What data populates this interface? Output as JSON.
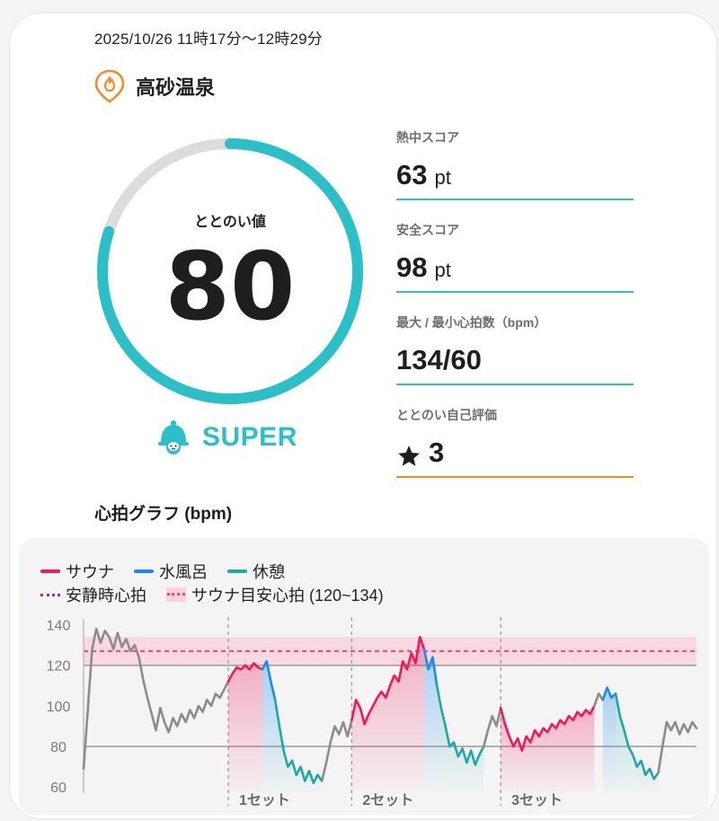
{
  "session": {
    "datetime": "2025/10/26 11時17分〜12時29分",
    "place": "高砂温泉"
  },
  "score": {
    "label": "ととのい値",
    "value": "80",
    "ratio": 0.8,
    "rank": "SUPER",
    "ring_color": "#2bbfc8",
    "track_color": "#dcdcdc"
  },
  "stats": [
    {
      "label": "熱中スコア",
      "value": "63",
      "unit": "pt"
    },
    {
      "label": "安全スコア",
      "value": "98",
      "unit": "pt"
    },
    {
      "label": "最大 / 最小心拍数（bpm）",
      "value": "134/60",
      "unit": ""
    },
    {
      "label": "ととのい自己評価",
      "value": "3",
      "unit": "",
      "icon": "star-icon"
    }
  ],
  "graph": {
    "title": "心拍グラフ (bpm)",
    "legend": {
      "sauna": "サウナ",
      "cold": "水風呂",
      "rest": "休憩",
      "resting_hr": "安静時心拍",
      "target": "サウナ目安心拍 (120~134)"
    },
    "colors": {
      "sauna": "#f0175a",
      "cold": "#1a8cf0",
      "rest": "#21a6a8",
      "other": "#8c8c8c",
      "resting_hr": "#8a2be2",
      "target": "#f0476d"
    },
    "sets": [
      "1セット",
      "2セット",
      "3セット"
    ]
  },
  "chart_data": {
    "type": "line",
    "title": "",
    "ylabel": "",
    "ylim": [
      57,
      142
    ],
    "yticks": [
      140,
      120,
      100,
      80,
      60
    ],
    "reference_lines": [
      120,
      80
    ],
    "target_band": [
      120,
      134
    ],
    "target_line": 127,
    "series": [
      {
        "segment": "other",
        "points": [
          [
            0,
            69
          ],
          [
            1,
            98
          ],
          [
            2,
            128
          ],
          [
            3,
            138
          ],
          [
            4,
            131
          ],
          [
            5,
            137
          ],
          [
            6,
            134
          ],
          [
            7,
            128
          ],
          [
            8,
            136
          ],
          [
            9,
            129
          ],
          [
            10,
            133
          ],
          [
            11,
            127
          ],
          [
            12,
            130
          ],
          [
            13,
            124
          ],
          [
            14,
            113
          ],
          [
            15,
            104
          ],
          [
            16,
            96
          ],
          [
            17,
            88
          ],
          [
            18,
            99
          ],
          [
            19,
            92
          ],
          [
            20,
            87
          ],
          [
            21,
            94
          ],
          [
            22,
            90
          ],
          [
            23,
            96
          ],
          [
            24,
            92
          ],
          [
            25,
            98
          ],
          [
            26,
            94
          ],
          [
            27,
            100
          ],
          [
            28,
            97
          ],
          [
            29,
            103
          ],
          [
            30,
            100
          ],
          [
            31,
            106
          ],
          [
            32,
            104
          ],
          [
            33,
            108
          ],
          [
            34,
            112
          ]
        ]
      },
      {
        "segment": "sauna",
        "points": [
          [
            34,
            112
          ],
          [
            35,
            116
          ],
          [
            36,
            119
          ],
          [
            37,
            118
          ],
          [
            38,
            120
          ],
          [
            39,
            118
          ],
          [
            40,
            121
          ],
          [
            41,
            119
          ],
          [
            42,
            118
          ]
        ]
      },
      {
        "segment": "cold",
        "points": [
          [
            42,
            118
          ],
          [
            43,
            122
          ],
          [
            44,
            112
          ],
          [
            45,
            103
          ]
        ]
      },
      {
        "segment": "rest",
        "points": [
          [
            45,
            103
          ],
          [
            46,
            90
          ],
          [
            47,
            78
          ],
          [
            48,
            70
          ],
          [
            49,
            73
          ],
          [
            50,
            66
          ],
          [
            51,
            70
          ],
          [
            52,
            63
          ],
          [
            53,
            68
          ],
          [
            54,
            62
          ],
          [
            55,
            66
          ],
          [
            56,
            63
          ]
        ]
      },
      {
        "segment": "other",
        "points": [
          [
            56,
            63
          ],
          [
            57,
            72
          ],
          [
            58,
            82
          ],
          [
            59,
            90
          ],
          [
            60,
            86
          ],
          [
            61,
            92
          ],
          [
            62,
            85
          ],
          [
            63,
            93
          ]
        ]
      },
      {
        "segment": "sauna",
        "points": [
          [
            63,
            93
          ],
          [
            64,
            103
          ],
          [
            65,
            99
          ],
          [
            66,
            91
          ],
          [
            67,
            96
          ],
          [
            68,
            100
          ],
          [
            69,
            104
          ],
          [
            70,
            107
          ],
          [
            71,
            104
          ],
          [
            72,
            110
          ],
          [
            73,
            115
          ],
          [
            74,
            112
          ],
          [
            75,
            122
          ],
          [
            76,
            118
          ],
          [
            77,
            126
          ],
          [
            78,
            121
          ],
          [
            79,
            134
          ],
          [
            80,
            128
          ]
        ]
      },
      {
        "segment": "cold",
        "points": [
          [
            80,
            128
          ],
          [
            81,
            118
          ],
          [
            82,
            124
          ],
          [
            83,
            110
          ]
        ]
      },
      {
        "segment": "rest",
        "points": [
          [
            83,
            110
          ],
          [
            84,
            99
          ],
          [
            85,
            90
          ],
          [
            86,
            80
          ],
          [
            87,
            82
          ],
          [
            88,
            75
          ],
          [
            89,
            79
          ],
          [
            90,
            72
          ],
          [
            91,
            78
          ],
          [
            92,
            71
          ],
          [
            93,
            76
          ],
          [
            94,
            80
          ]
        ]
      },
      {
        "segment": "other",
        "points": [
          [
            94,
            80
          ],
          [
            95,
            88
          ],
          [
            96,
            95
          ],
          [
            97,
            90
          ],
          [
            98,
            99
          ]
        ]
      },
      {
        "segment": "sauna",
        "points": [
          [
            98,
            99
          ],
          [
            99,
            91
          ],
          [
            100,
            85
          ],
          [
            101,
            80
          ],
          [
            102,
            84
          ],
          [
            103,
            78
          ],
          [
            104,
            85
          ],
          [
            105,
            82
          ],
          [
            106,
            88
          ],
          [
            107,
            85
          ],
          [
            108,
            89
          ],
          [
            109,
            87
          ],
          [
            110,
            91
          ],
          [
            111,
            89
          ],
          [
            112,
            93
          ],
          [
            113,
            91
          ],
          [
            114,
            95
          ],
          [
            115,
            93
          ],
          [
            116,
            97
          ],
          [
            117,
            95
          ],
          [
            118,
            98
          ],
          [
            119,
            96
          ],
          [
            120,
            100
          ]
        ]
      },
      {
        "segment": "other",
        "points": [
          [
            120,
            100
          ],
          [
            121,
            106
          ],
          [
            122,
            103
          ]
        ]
      },
      {
        "segment": "cold",
        "points": [
          [
            122,
            103
          ],
          [
            123,
            109
          ],
          [
            124,
            104
          ],
          [
            125,
            106
          ]
        ]
      },
      {
        "segment": "rest",
        "points": [
          [
            125,
            106
          ],
          [
            126,
            95
          ],
          [
            127,
            88
          ],
          [
            128,
            80
          ],
          [
            129,
            76
          ],
          [
            130,
            70
          ],
          [
            131,
            73
          ],
          [
            132,
            66
          ],
          [
            133,
            69
          ],
          [
            134,
            64
          ],
          [
            135,
            67
          ]
        ]
      },
      {
        "segment": "other",
        "points": [
          [
            135,
            67
          ],
          [
            136,
            80
          ],
          [
            137,
            92
          ],
          [
            138,
            88
          ],
          [
            139,
            92
          ],
          [
            140,
            86
          ],
          [
            141,
            91
          ],
          [
            142,
            87
          ],
          [
            143,
            92
          ],
          [
            144,
            89
          ]
        ]
      }
    ]
  }
}
